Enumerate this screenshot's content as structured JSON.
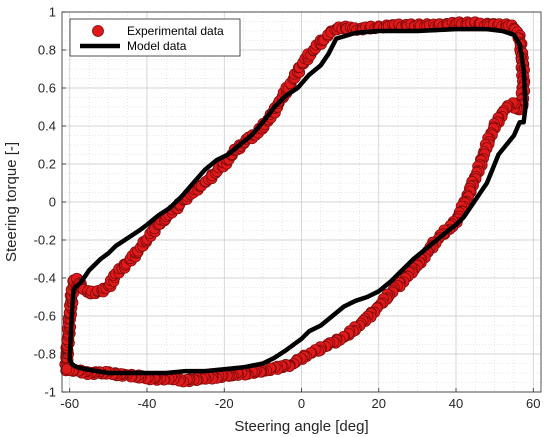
{
  "chart_data": {
    "type": "scatter",
    "title": "",
    "xlabel": "Steering angle [deg]",
    "ylabel": "Steering torque [-]",
    "xlim": [
      -62,
      62
    ],
    "ylim": [
      -1,
      1
    ],
    "xticks": [
      "-60",
      "-40",
      "-20",
      "0",
      "20",
      "40",
      "60"
    ],
    "yticks": [
      "-1",
      "-0.8",
      "-0.6",
      "-0.4",
      "-0.2",
      "0",
      "0.2",
      "0.4",
      "0.6",
      "0.8",
      "1"
    ],
    "grid": true,
    "legend_position": "top-left",
    "series": [
      {
        "name": "Experimental data",
        "kind": "scatter",
        "color": "#e0191b",
        "edge_color": "#7a0a0a",
        "x": [
          -61,
          -60.5,
          -60,
          -59.5,
          -59,
          -58,
          -57,
          -55,
          -52,
          -50,
          -48,
          -45,
          -42,
          -40,
          -38,
          -35,
          -32,
          -30,
          -27,
          -24,
          -20,
          -17,
          -14,
          -11,
          -8,
          -5,
          -2,
          0,
          3,
          6,
          8,
          10,
          14,
          20,
          25,
          30,
          35,
          40,
          45,
          50,
          54,
          56,
          57,
          57.5,
          57,
          56,
          55,
          53,
          50,
          48,
          46,
          44,
          42,
          40,
          38,
          35,
          32,
          30,
          27,
          24,
          20,
          16,
          12,
          8,
          4,
          0,
          -3,
          -6,
          -10,
          -14,
          -18,
          -22,
          -26,
          -30,
          -34,
          -38,
          -42,
          -46,
          -50,
          -53,
          -56,
          -58,
          -59.5,
          -60.5,
          -61
        ],
        "y": [
          -0.88,
          -0.75,
          -0.62,
          -0.5,
          -0.42,
          -0.4,
          -0.45,
          -0.48,
          -0.47,
          -0.45,
          -0.38,
          -0.32,
          -0.25,
          -0.2,
          -0.14,
          -0.08,
          -0.02,
          0.02,
          0.07,
          0.12,
          0.2,
          0.27,
          0.33,
          0.37,
          0.45,
          0.55,
          0.65,
          0.72,
          0.8,
          0.86,
          0.9,
          0.92,
          0.91,
          0.92,
          0.93,
          0.93,
          0.93,
          0.94,
          0.94,
          0.93,
          0.93,
          0.9,
          0.8,
          0.62,
          0.5,
          0.48,
          0.52,
          0.5,
          0.4,
          0.3,
          0.18,
          0.08,
          -0.02,
          -0.1,
          -0.14,
          -0.2,
          -0.28,
          -0.33,
          -0.4,
          -0.46,
          -0.55,
          -0.63,
          -0.7,
          -0.74,
          -0.78,
          -0.82,
          -0.86,
          -0.87,
          -0.89,
          -0.9,
          -0.91,
          -0.92,
          -0.93,
          -0.94,
          -0.93,
          -0.93,
          -0.92,
          -0.91,
          -0.9,
          -0.9,
          -0.9,
          -0.89,
          -0.88,
          -0.88,
          -0.88
        ]
      },
      {
        "name": "Model data",
        "kind": "line",
        "color": "#000000",
        "x": [
          -60,
          -59.5,
          -59,
          -57,
          -55,
          -52,
          -50,
          -48,
          -45,
          -42,
          -40,
          -37,
          -34,
          -31,
          -28,
          -25,
          -22,
          -19,
          -16,
          -13,
          -10,
          -7,
          -4,
          -1,
          2,
          5,
          7,
          9,
          14,
          20,
          30,
          40,
          48,
          52,
          55,
          56.5,
          57.5,
          58,
          57.5,
          56.5,
          55,
          53,
          51,
          50,
          48,
          46,
          44,
          42,
          40,
          38,
          35,
          32,
          29,
          26,
          23,
          20,
          17,
          14,
          11,
          8,
          5,
          2,
          0,
          -2,
          -4,
          -7,
          -10,
          -15,
          -20,
          -25,
          -30,
          -35,
          -40,
          -45,
          -50,
          -53,
          -56,
          -58,
          -59,
          -59.5,
          -60
        ],
        "y": [
          -0.83,
          -0.6,
          -0.46,
          -0.42,
          -0.36,
          -0.3,
          -0.27,
          -0.23,
          -0.19,
          -0.15,
          -0.12,
          -0.07,
          -0.03,
          0.03,
          0.1,
          0.17,
          0.22,
          0.25,
          0.3,
          0.35,
          0.42,
          0.5,
          0.56,
          0.6,
          0.67,
          0.72,
          0.78,
          0.86,
          0.89,
          0.9,
          0.9,
          0.91,
          0.91,
          0.9,
          0.88,
          0.83,
          0.7,
          0.5,
          0.42,
          0.42,
          0.35,
          0.3,
          0.25,
          0.2,
          0.1,
          0.04,
          -0.02,
          -0.08,
          -0.12,
          -0.15,
          -0.2,
          -0.25,
          -0.3,
          -0.36,
          -0.42,
          -0.47,
          -0.5,
          -0.52,
          -0.55,
          -0.6,
          -0.65,
          -0.68,
          -0.72,
          -0.75,
          -0.78,
          -0.82,
          -0.85,
          -0.87,
          -0.88,
          -0.89,
          -0.89,
          -0.9,
          -0.9,
          -0.9,
          -0.9,
          -0.89,
          -0.88,
          -0.87,
          -0.86,
          -0.85,
          -0.83
        ]
      }
    ]
  }
}
